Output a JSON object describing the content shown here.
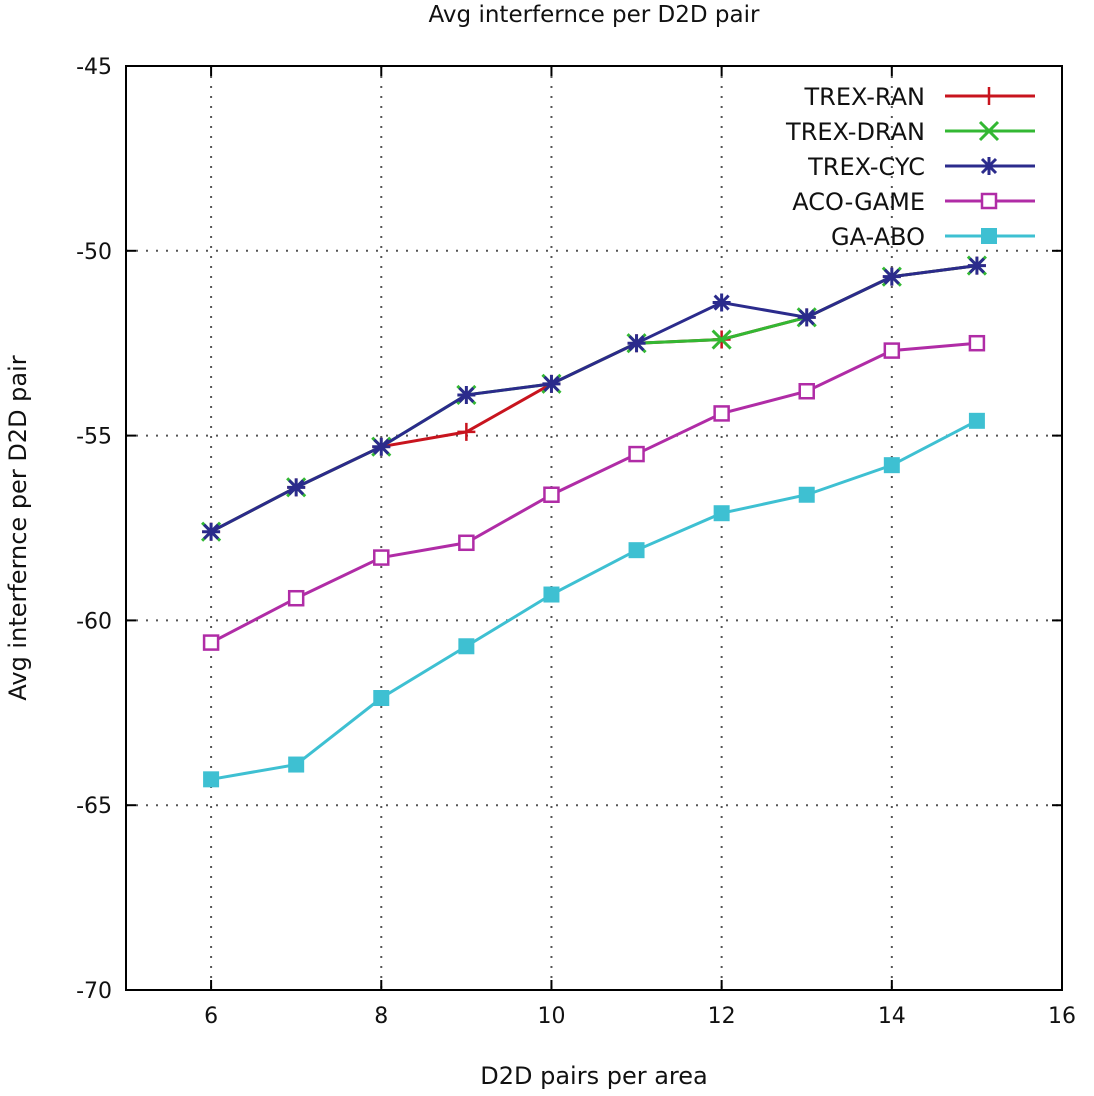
{
  "chart_data": {
    "type": "line",
    "title": "Avg interfernce per D2D pair",
    "xlabel": "D2D pairs per area",
    "ylabel": "Avg interfernce per D2D pair",
    "xlim": [
      5,
      16
    ],
    "ylim": [
      -70,
      -45
    ],
    "xticks": [
      6,
      8,
      10,
      12,
      14,
      16
    ],
    "yticks": [
      -70,
      -65,
      -60,
      -55,
      -50,
      -45
    ],
    "grid": true,
    "legend_position": "top-right",
    "x": [
      6,
      7,
      8,
      9,
      10,
      11,
      12,
      13,
      14,
      15
    ],
    "series": [
      {
        "name": "TREX-RAN",
        "color": "#c8141e",
        "marker": "plus",
        "values": [
          -57.6,
          -56.4,
          -55.3,
          -54.9,
          -53.6,
          -52.5,
          -52.4,
          -51.8,
          -50.7,
          -50.4
        ]
      },
      {
        "name": "TREX-DRAN",
        "color": "#33b833",
        "marker": "cross",
        "values": [
          -57.6,
          -56.4,
          -55.3,
          -53.9,
          -53.6,
          -52.5,
          -52.4,
          -51.8,
          -50.7,
          -50.4
        ]
      },
      {
        "name": "TREX-CYC",
        "color": "#2b2b8c",
        "marker": "asterisk",
        "values": [
          -57.6,
          -56.4,
          -55.3,
          -53.9,
          -53.6,
          -52.5,
          -51.4,
          -51.8,
          -50.7,
          -50.4
        ]
      },
      {
        "name": "ACO-GAME",
        "color": "#b02ca6",
        "marker": "open-square",
        "values": [
          -60.6,
          -59.4,
          -58.3,
          -57.9,
          -56.6,
          -55.5,
          -54.4,
          -53.8,
          -52.7,
          -52.5
        ]
      },
      {
        "name": "GA-ABO",
        "color": "#3ec0d2",
        "marker": "filled-square",
        "values": [
          -64.3,
          -63.9,
          -62.1,
          -60.7,
          -59.3,
          -58.1,
          -57.1,
          -56.6,
          -55.8,
          -54.6
        ]
      }
    ]
  }
}
